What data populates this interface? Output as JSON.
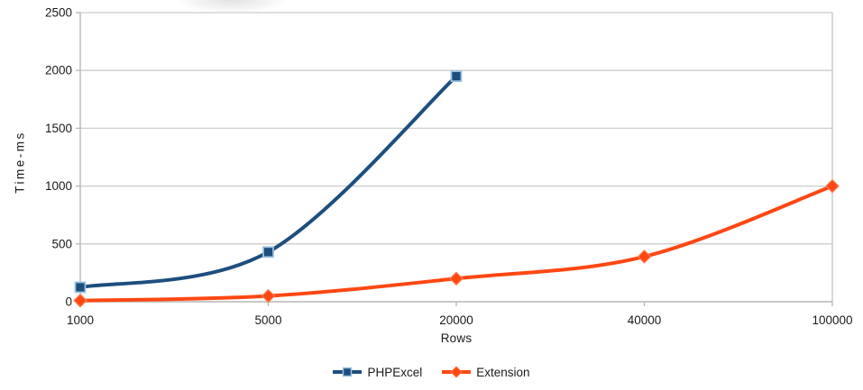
{
  "chart_data": {
    "type": "line",
    "title": "",
    "xlabel": "Rows",
    "ylabel": "Time-ms",
    "categories": [
      "1000",
      "5000",
      "20000",
      "40000",
      "100000"
    ],
    "y_ticks": [
      0,
      500,
      1000,
      1500,
      2000,
      2500
    ],
    "ylim": [
      0,
      2500
    ],
    "grid": true,
    "smooth_lines": true,
    "legend_position": "bottom",
    "series": [
      {
        "name": "PHPExcel",
        "marker": "square",
        "color": "#1d4e7e",
        "marker_border": "#9cc0e0",
        "values": [
          125,
          430,
          1950,
          null,
          null
        ]
      },
      {
        "name": "Extension",
        "marker": "diamond",
        "color": "#ff4713",
        "marker_border": "#ff8052",
        "values": [
          10,
          50,
          200,
          390,
          1000
        ]
      }
    ],
    "colors": {
      "gridline": "#cdcdcd",
      "axis": "#b6b6b6",
      "plot_border": "#c4c4c4",
      "text": "#1a1a1a"
    }
  }
}
